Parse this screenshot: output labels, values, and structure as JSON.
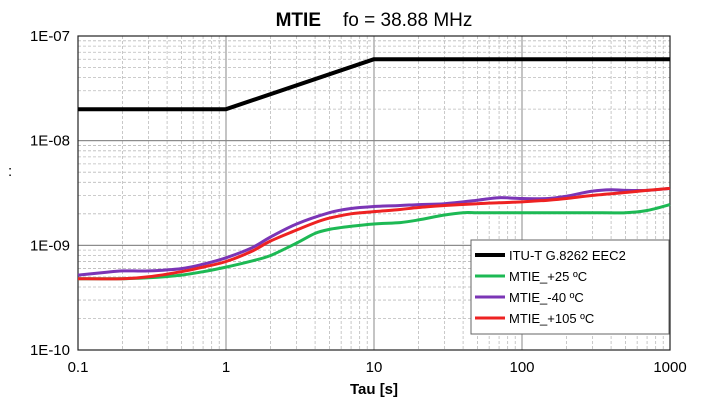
{
  "chart_data": {
    "type": "line",
    "title_bold": "MTIE",
    "title_rest": "fo = 38.88 MHz",
    "xlabel": "Tau [s]",
    "ylabel": "",
    "side_mark": ":",
    "x_scale": "log",
    "y_scale": "log",
    "xlim": [
      0.1,
      1000
    ],
    "ylim": [
      1e-10,
      1e-07
    ],
    "x_ticks": [
      {
        "value": 0.1,
        "label": "0.1"
      },
      {
        "value": 1,
        "label": "1"
      },
      {
        "value": 10,
        "label": "10"
      },
      {
        "value": 100,
        "label": "100"
      },
      {
        "value": 1000,
        "label": "1000"
      }
    ],
    "y_ticks": [
      {
        "value": 1e-10,
        "label": "1E-10"
      },
      {
        "value": 1e-09,
        "label": "1E-09"
      },
      {
        "value": 1e-08,
        "label": "1E-08"
      },
      {
        "value": 1e-07,
        "label": "1E-07"
      }
    ],
    "grid": true,
    "legend_position": "bottom-right",
    "series": [
      {
        "name": "ITU-T G.8262 EEC2",
        "color": "#000000",
        "width": 4,
        "x": [
          0.1,
          1,
          10,
          1000
        ],
        "y": [
          2e-08,
          2e-08,
          6e-08,
          6e-08
        ]
      },
      {
        "name": "MTIE_+25 ºC",
        "color": "#1db954",
        "width": 3,
        "x": [
          0.1,
          0.2,
          0.3,
          0.5,
          0.7,
          1,
          1.5,
          2,
          3,
          4,
          5,
          7,
          10,
          15,
          20,
          30,
          40,
          50,
          70,
          100,
          150,
          200,
          300,
          500,
          700,
          1000
        ],
        "y": [
          4.8e-10,
          4.8e-10,
          4.9e-10,
          5.2e-10,
          5.6e-10,
          6.2e-10,
          7.1e-10,
          8e-10,
          1.05e-09,
          1.3e-09,
          1.42e-09,
          1.52e-09,
          1.6e-09,
          1.65e-09,
          1.75e-09,
          1.95e-09,
          2.05e-09,
          2.05e-09,
          2.05e-09,
          2.05e-09,
          2.05e-09,
          2.05e-09,
          2.05e-09,
          2.05e-09,
          2.15e-09,
          2.45e-09
        ]
      },
      {
        "name": "MTIE_-40 ºC",
        "color": "#7b35b6",
        "width": 3,
        "x": [
          0.1,
          0.15,
          0.2,
          0.3,
          0.5,
          0.7,
          1,
          1.5,
          2,
          3,
          5,
          7,
          10,
          15,
          20,
          30,
          50,
          70,
          100,
          150,
          200,
          300,
          400,
          500,
          700,
          1000
        ],
        "y": [
          5.2e-10,
          5.5e-10,
          5.7e-10,
          5.7e-10,
          6e-10,
          6.6e-10,
          7.6e-10,
          9.5e-10,
          1.2e-09,
          1.6e-09,
          2.05e-09,
          2.25e-09,
          2.35e-09,
          2.4e-09,
          2.45e-09,
          2.5e-09,
          2.7e-09,
          2.85e-09,
          2.8e-09,
          2.8e-09,
          2.95e-09,
          3.3e-09,
          3.4e-09,
          3.35e-09,
          3.35e-09,
          3.5e-09
        ]
      },
      {
        "name": "MTIE_+105 ºC",
        "color": "#ee2222",
        "width": 3,
        "x": [
          0.1,
          0.2,
          0.3,
          0.5,
          0.7,
          1,
          1.5,
          2,
          3,
          4,
          5,
          7,
          10,
          15,
          20,
          30,
          50,
          70,
          100,
          150,
          200,
          300,
          500,
          700,
          1000
        ],
        "y": [
          4.8e-10,
          4.8e-10,
          5e-10,
          5.6e-10,
          6.2e-10,
          7e-10,
          8.8e-10,
          1.1e-09,
          1.4e-09,
          1.65e-09,
          1.82e-09,
          2e-09,
          2.1e-09,
          2.2e-09,
          2.3e-09,
          2.4e-09,
          2.5e-09,
          2.55e-09,
          2.6e-09,
          2.7e-09,
          2.8e-09,
          3e-09,
          3.2e-09,
          3.35e-09,
          3.5e-09
        ]
      }
    ]
  }
}
